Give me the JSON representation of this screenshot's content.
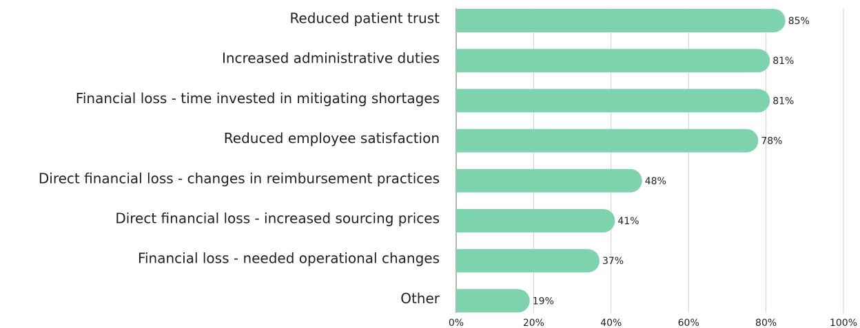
{
  "chart_data": {
    "type": "bar",
    "orientation": "horizontal",
    "categories": [
      "Reduced patient trust",
      "Increased administrative duties",
      "Financial loss - time invested in mitigating shortages",
      "Reduced employee satisfaction",
      "Direct financial loss - changes in reimbursement practices",
      "Direct financial loss - increased sourcing prices",
      "Financial loss - needed operational changes",
      "Other"
    ],
    "values": [
      85,
      81,
      81,
      78,
      48,
      41,
      37,
      19
    ],
    "value_labels": [
      "85%",
      "81%",
      "81%",
      "78%",
      "48%",
      "41%",
      "37%",
      "19%"
    ],
    "color": "#7dd3ae",
    "xlim": [
      0,
      100
    ],
    "xticks": [
      {
        "value": 0,
        "label": "0%"
      },
      {
        "value": 20,
        "label": "20%"
      },
      {
        "value": 40,
        "label": "40%"
      },
      {
        "value": 60,
        "label": "60%"
      },
      {
        "value": 80,
        "label": "80%"
      },
      {
        "value": 100,
        "label": "100%"
      }
    ],
    "grid": true
  }
}
